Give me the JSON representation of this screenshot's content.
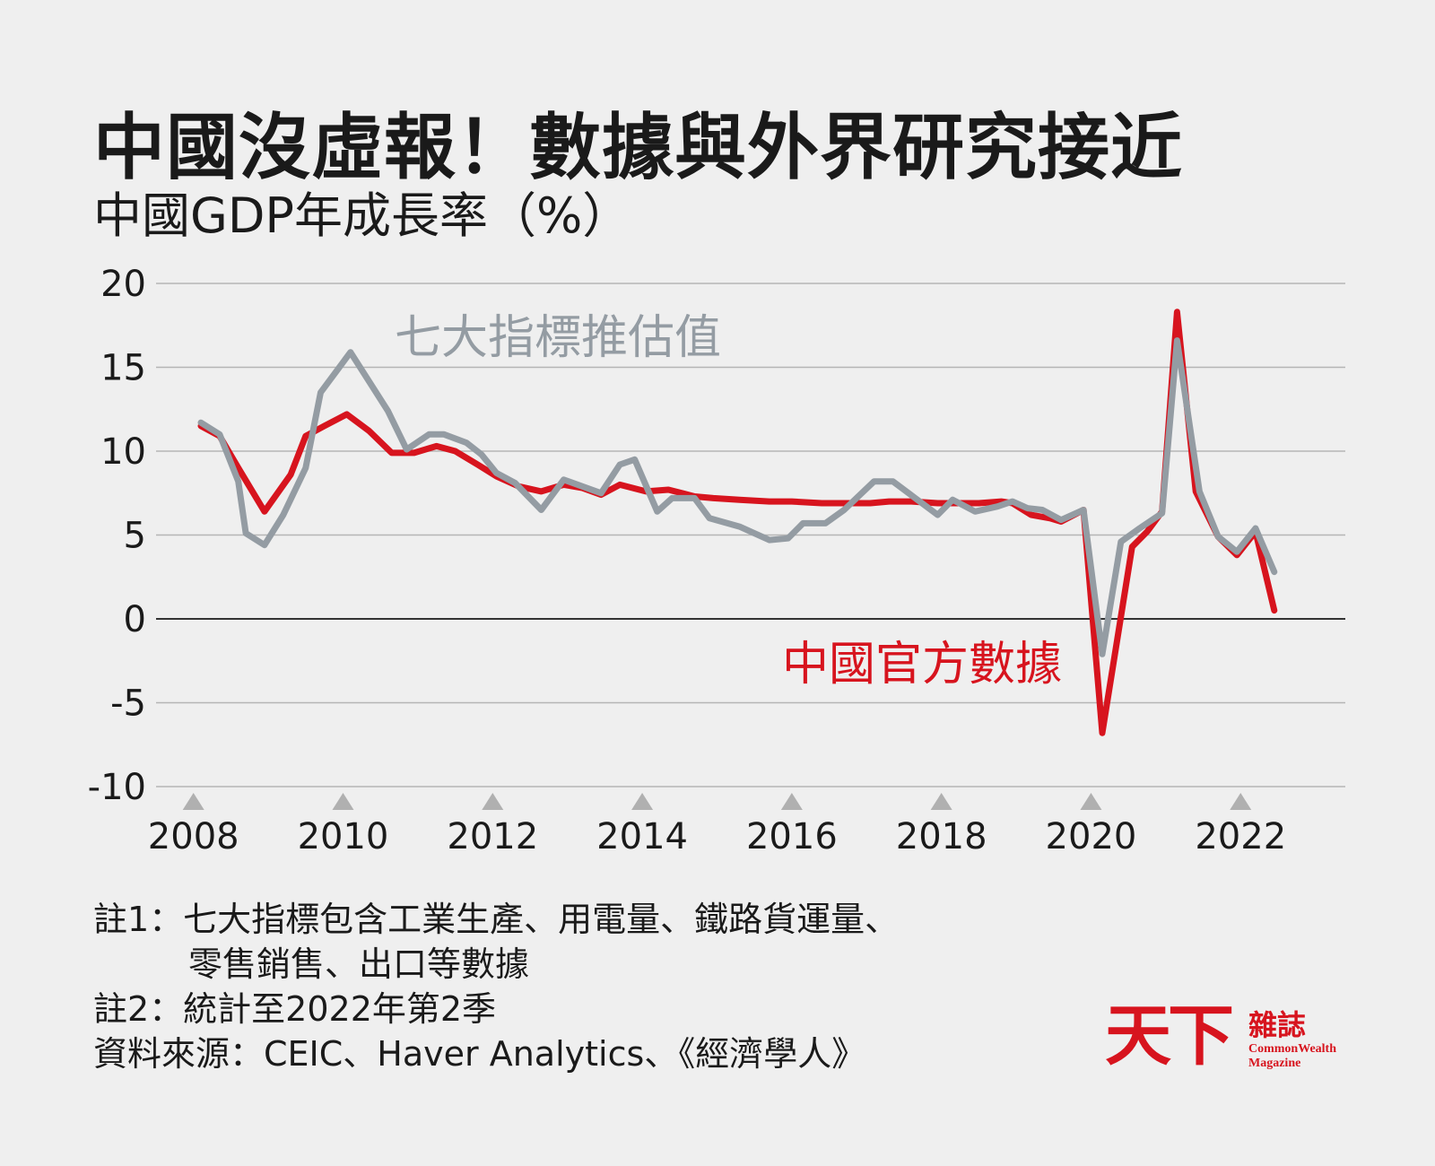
{
  "header": {
    "title": "中國沒虛報！數據與外界研究接近",
    "subtitle": "中國GDP年成長率（%）"
  },
  "colors": {
    "background": "#efefef",
    "official": "#d7141e",
    "estimate": "#949ca3",
    "grid": "#b5b5b5",
    "zero_line": "#333333",
    "tick_marker": "#b0b0b0"
  },
  "chart_data": {
    "type": "line",
    "ylim": [
      -10,
      20
    ],
    "yticks": [
      "20",
      "15",
      "10",
      "5",
      "0",
      "-5",
      "-10"
    ],
    "xlim": [
      2007.5,
      2023.4
    ],
    "xticks": [
      "2008",
      "2010",
      "2012",
      "2014",
      "2016",
      "2018",
      "2020",
      "2022"
    ],
    "grid": true,
    "series": [
      {
        "name": "七大指標推估值",
        "color": "#949ca3",
        "points": [
          [
            2008.1,
            11.7
          ],
          [
            2008.35,
            11.0
          ],
          [
            2008.6,
            8.2
          ],
          [
            2008.7,
            5.1
          ],
          [
            2008.95,
            4.4
          ],
          [
            2009.2,
            6.2
          ],
          [
            2009.5,
            9.0
          ],
          [
            2009.7,
            13.5
          ],
          [
            2010.1,
            15.9
          ],
          [
            2010.6,
            12.4
          ],
          [
            2010.85,
            10.1
          ],
          [
            2011.15,
            11.0
          ],
          [
            2011.35,
            11.0
          ],
          [
            2011.65,
            10.5
          ],
          [
            2011.85,
            9.8
          ],
          [
            2012.05,
            8.7
          ],
          [
            2012.3,
            8.1
          ],
          [
            2012.65,
            6.5
          ],
          [
            2012.95,
            8.3
          ],
          [
            2013.2,
            7.9
          ],
          [
            2013.45,
            7.5
          ],
          [
            2013.7,
            9.2
          ],
          [
            2013.9,
            9.5
          ],
          [
            2014.2,
            6.4
          ],
          [
            2014.4,
            7.2
          ],
          [
            2014.7,
            7.2
          ],
          [
            2014.9,
            6.0
          ],
          [
            2015.3,
            5.5
          ],
          [
            2015.7,
            4.7
          ],
          [
            2015.95,
            4.8
          ],
          [
            2016.15,
            5.7
          ],
          [
            2016.45,
            5.7
          ],
          [
            2016.7,
            6.5
          ],
          [
            2017.1,
            8.2
          ],
          [
            2017.35,
            8.2
          ],
          [
            2017.65,
            7.2
          ],
          [
            2017.95,
            6.2
          ],
          [
            2018.15,
            7.1
          ],
          [
            2018.45,
            6.4
          ],
          [
            2018.75,
            6.7
          ],
          [
            2018.95,
            7.0
          ],
          [
            2019.15,
            6.6
          ],
          [
            2019.35,
            6.5
          ],
          [
            2019.6,
            5.9
          ],
          [
            2019.9,
            6.5
          ],
          [
            2020.15,
            -2.1
          ],
          [
            2020.4,
            4.6
          ],
          [
            2020.65,
            5.4
          ],
          [
            2020.95,
            6.3
          ],
          [
            2021.15,
            16.6
          ],
          [
            2021.45,
            7.6
          ],
          [
            2021.7,
            4.9
          ],
          [
            2021.95,
            4.0
          ],
          [
            2022.2,
            5.4
          ],
          [
            2022.45,
            2.8
          ]
        ]
      },
      {
        "name": "中國官方數據",
        "color": "#d7141e",
        "points": [
          [
            2008.1,
            11.5
          ],
          [
            2008.35,
            10.9
          ],
          [
            2008.6,
            9.0
          ],
          [
            2008.95,
            6.4
          ],
          [
            2009.3,
            8.6
          ],
          [
            2009.5,
            10.9
          ],
          [
            2009.75,
            11.5
          ],
          [
            2010.05,
            12.2
          ],
          [
            2010.35,
            11.2
          ],
          [
            2010.65,
            9.9
          ],
          [
            2010.95,
            9.9
          ],
          [
            2011.25,
            10.3
          ],
          [
            2011.5,
            10.0
          ],
          [
            2011.8,
            9.2
          ],
          [
            2012.05,
            8.5
          ],
          [
            2012.35,
            7.9
          ],
          [
            2012.65,
            7.6
          ],
          [
            2012.95,
            8.0
          ],
          [
            2013.2,
            7.8
          ],
          [
            2013.45,
            7.4
          ],
          [
            2013.7,
            8.0
          ],
          [
            2014.05,
            7.6
          ],
          [
            2014.35,
            7.7
          ],
          [
            2014.7,
            7.3
          ],
          [
            2014.95,
            7.2
          ],
          [
            2015.3,
            7.1
          ],
          [
            2015.7,
            7.0
          ],
          [
            2016.0,
            7.0
          ],
          [
            2016.4,
            6.9
          ],
          [
            2016.75,
            6.9
          ],
          [
            2017.05,
            6.9
          ],
          [
            2017.3,
            7.0
          ],
          [
            2017.6,
            7.0
          ],
          [
            2017.95,
            6.9
          ],
          [
            2018.25,
            6.9
          ],
          [
            2018.5,
            6.9
          ],
          [
            2018.8,
            7.0
          ],
          [
            2018.95,
            6.9
          ],
          [
            2019.2,
            6.2
          ],
          [
            2019.45,
            6.0
          ],
          [
            2019.6,
            5.8
          ],
          [
            2019.9,
            6.5
          ],
          [
            2020.15,
            -6.8
          ],
          [
            2020.55,
            4.3
          ],
          [
            2020.75,
            5.2
          ],
          [
            2020.95,
            6.4
          ],
          [
            2021.15,
            18.3
          ],
          [
            2021.4,
            7.6
          ],
          [
            2021.7,
            4.9
          ],
          [
            2021.95,
            3.8
          ],
          [
            2022.2,
            5.2
          ],
          [
            2022.45,
            0.5
          ]
        ]
      }
    ],
    "annotations": [
      {
        "text": "七大指標推估值",
        "series": 0
      },
      {
        "text": "中國官方數據",
        "series": 1
      }
    ]
  },
  "notes": {
    "note1_line1": "註1：七大指標包含工業生產、用電量、鐵路貨運量、",
    "note1_line2": "零售銷售、出口等數據",
    "note2": "註2：統計至2022年第2季",
    "source": "資料來源：CEIC、Haver Analytics、《經濟學人》"
  },
  "logo": {
    "mark": "天下",
    "cn": "雜誌",
    "en_line1": "CommonWealth",
    "en_line2": "Magazine"
  }
}
